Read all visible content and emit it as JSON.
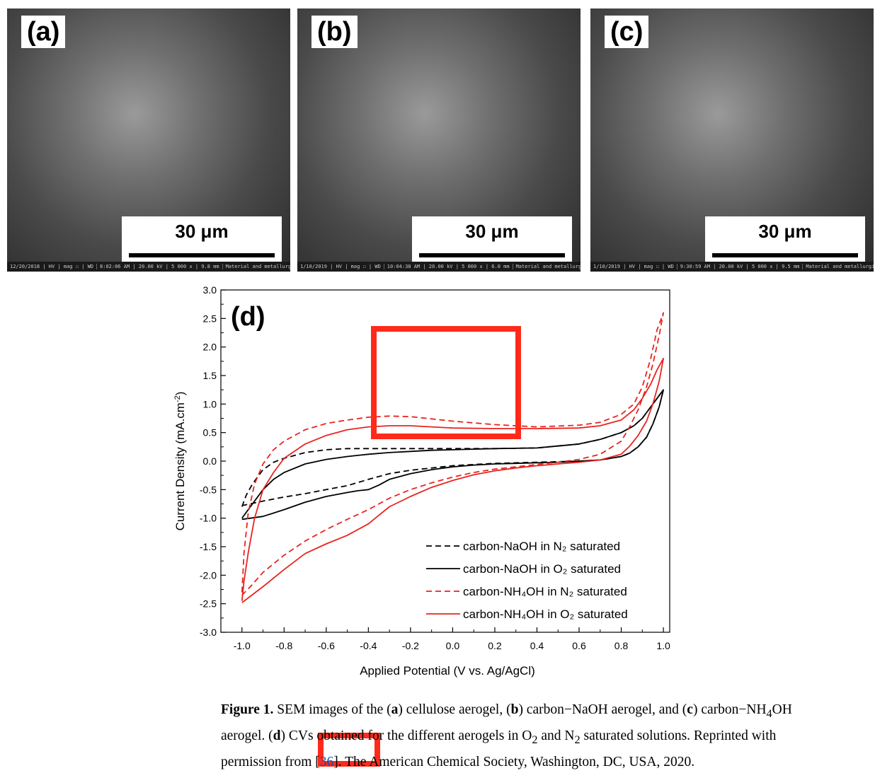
{
  "panels": [
    {
      "label": "(a)",
      "scale": "30 μm",
      "databar": [
        "12/20/2018 | HV | mag ☐ | WD",
        "8:02:06 AM | 20.00 kV | 5 000 x | 9.8 mm",
        "Material and metallurgical Eng Dept ITS"
      ]
    },
    {
      "label": "(b)",
      "scale": "30 μm",
      "databar": [
        "1/10/2019 | HV | mag ☐ | WD",
        "10:04:38 AM | 20.00 kV | 5 000 x | 6.0 mm",
        "Material and metallurgical Eng Dept ITS"
      ]
    },
    {
      "label": "(c)",
      "scale": "30 μm",
      "databar": [
        "1/10/2019 | HV | mag ☐ | WD",
        "9:30:59 AM | 20.00 kV | 5 000 x | 9.5 mm",
        "Material and metallurgical Eng Dept ITS"
      ]
    }
  ],
  "chart_data": {
    "type": "line",
    "panel_label": "(d)",
    "xlabel": "Applied Potential (V vs. Ag/AgCl)",
    "ylabel": "Current Density (mA.cm",
    "ylabel_sup": "-2",
    "ylabel_close": ")",
    "xlim": [
      -1.1,
      1.03
    ],
    "ylim": [
      -3.0,
      3.0
    ],
    "xticks": [
      "-1.0",
      "-0.8",
      "-0.6",
      "-0.4",
      "-0.2",
      "0.0",
      "0.2",
      "0.4",
      "0.6",
      "0.8",
      "1.0"
    ],
    "yticks": [
      "3.0",
      "2.5",
      "2.0",
      "1.5",
      "1.0",
      "0.5",
      "0.0",
      "-0.5",
      "-1.0",
      "-1.5",
      "-2.0",
      "-2.5",
      "-3.0"
    ],
    "series": [
      {
        "name": "carbon-NaOH in N₂ saturated",
        "color": "#000000",
        "dash": true,
        "x": [
          -1.0,
          -0.98,
          -0.95,
          -0.9,
          -0.85,
          -0.8,
          -0.7,
          -0.6,
          -0.5,
          -0.4,
          -0.3,
          -0.2,
          -0.1,
          0.0,
          0.2,
          0.4,
          0.6,
          0.7,
          0.8,
          0.86,
          0.9,
          0.94,
          0.97,
          1.0,
          0.98,
          0.95,
          0.92,
          0.88,
          0.84,
          0.8,
          0.7,
          0.6,
          0.5,
          0.4,
          0.3,
          0.2,
          0.1,
          0.0,
          -0.1,
          -0.2,
          -0.3,
          -0.4,
          -0.5,
          -0.6,
          -0.7,
          -0.8,
          -0.9,
          -0.96,
          -1.0
        ],
        "y": [
          -0.8,
          -0.6,
          -0.4,
          -0.15,
          -0.02,
          0.05,
          0.15,
          0.2,
          0.22,
          0.22,
          0.22,
          0.22,
          0.22,
          0.22,
          0.22,
          0.23,
          0.3,
          0.38,
          0.5,
          0.62,
          0.75,
          0.95,
          1.1,
          1.25,
          0.95,
          0.65,
          0.42,
          0.25,
          0.14,
          0.08,
          0.02,
          0.0,
          -0.01,
          -0.02,
          -0.03,
          -0.04,
          -0.06,
          -0.08,
          -0.12,
          -0.16,
          -0.22,
          -0.32,
          -0.43,
          -0.5,
          -0.57,
          -0.63,
          -0.7,
          -0.75,
          -0.78
        ]
      },
      {
        "name": "carbon-NaOH in O₂ saturated",
        "color": "#000000",
        "dash": false,
        "x": [
          -1.0,
          -0.96,
          -0.9,
          -0.85,
          -0.8,
          -0.7,
          -0.6,
          -0.5,
          -0.4,
          -0.3,
          -0.2,
          -0.1,
          0.0,
          0.2,
          0.4,
          0.6,
          0.7,
          0.8,
          0.86,
          0.9,
          0.94,
          0.97,
          1.0,
          0.98,
          0.95,
          0.92,
          0.88,
          0.84,
          0.8,
          0.7,
          0.6,
          0.5,
          0.4,
          0.3,
          0.2,
          0.1,
          0.0,
          -0.1,
          -0.2,
          -0.3,
          -0.35,
          -0.4,
          -0.45,
          -0.5,
          -0.6,
          -0.7,
          -0.8,
          -0.9,
          -0.96,
          -1.0
        ],
        "y": [
          -1.0,
          -0.8,
          -0.5,
          -0.32,
          -0.2,
          -0.05,
          0.03,
          0.08,
          0.12,
          0.15,
          0.17,
          0.19,
          0.2,
          0.22,
          0.23,
          0.3,
          0.38,
          0.5,
          0.62,
          0.75,
          0.95,
          1.1,
          1.25,
          0.95,
          0.65,
          0.42,
          0.25,
          0.14,
          0.08,
          0.02,
          0.0,
          -0.02,
          -0.03,
          -0.04,
          -0.05,
          -0.07,
          -0.1,
          -0.15,
          -0.22,
          -0.32,
          -0.42,
          -0.5,
          -0.52,
          -0.55,
          -0.62,
          -0.72,
          -0.85,
          -0.97,
          -1.0,
          -1.02
        ]
      },
      {
        "name": "carbon-NH₄OH in N₂ saturated",
        "color": "#e8241f",
        "dash": true,
        "x": [
          -1.0,
          -0.99,
          -0.97,
          -0.94,
          -0.9,
          -0.85,
          -0.8,
          -0.7,
          -0.6,
          -0.5,
          -0.4,
          -0.3,
          -0.2,
          -0.1,
          0.0,
          0.2,
          0.4,
          0.6,
          0.7,
          0.8,
          0.86,
          0.9,
          0.94,
          0.97,
          1.0,
          0.98,
          0.95,
          0.92,
          0.88,
          0.84,
          0.8,
          0.7,
          0.6,
          0.5,
          0.4,
          0.3,
          0.2,
          0.1,
          0.0,
          -0.1,
          -0.2,
          -0.3,
          -0.4,
          -0.5,
          -0.6,
          -0.7,
          -0.8,
          -0.9,
          -0.96,
          -1.0
        ],
        "y": [
          -2.3,
          -1.6,
          -0.9,
          -0.4,
          -0.05,
          0.2,
          0.35,
          0.55,
          0.66,
          0.72,
          0.77,
          0.79,
          0.78,
          0.74,
          0.7,
          0.64,
          0.6,
          0.63,
          0.68,
          0.82,
          1.0,
          1.3,
          1.8,
          2.3,
          2.6,
          2.2,
          1.7,
          1.3,
          0.9,
          0.6,
          0.35,
          0.12,
          0.03,
          -0.02,
          -0.06,
          -0.1,
          -0.14,
          -0.2,
          -0.28,
          -0.38,
          -0.5,
          -0.65,
          -0.85,
          -1.02,
          -1.2,
          -1.4,
          -1.65,
          -1.95,
          -2.2,
          -2.35
        ]
      },
      {
        "name": "carbon-NH₄OH in O₂ saturated",
        "color": "#e8241f",
        "dash": false,
        "x": [
          -1.0,
          -0.99,
          -0.97,
          -0.94,
          -0.9,
          -0.85,
          -0.8,
          -0.7,
          -0.6,
          -0.5,
          -0.4,
          -0.3,
          -0.2,
          -0.1,
          0.0,
          0.2,
          0.4,
          0.6,
          0.7,
          0.8,
          0.86,
          0.9,
          0.94,
          0.97,
          1.0,
          0.98,
          0.95,
          0.92,
          0.88,
          0.84,
          0.8,
          0.7,
          0.6,
          0.5,
          0.4,
          0.3,
          0.2,
          0.1,
          0.0,
          -0.1,
          -0.2,
          -0.3,
          -0.35,
          -0.4,
          -0.5,
          -0.6,
          -0.7,
          -0.8,
          -0.9,
          -1.0
        ],
        "y": [
          -2.45,
          -2.1,
          -1.6,
          -1.0,
          -0.5,
          -0.2,
          0.05,
          0.3,
          0.45,
          0.55,
          0.6,
          0.62,
          0.62,
          0.6,
          0.58,
          0.57,
          0.57,
          0.58,
          0.62,
          0.72,
          0.9,
          1.1,
          1.35,
          1.6,
          1.8,
          1.4,
          1.0,
          0.7,
          0.45,
          0.26,
          0.12,
          0.02,
          -0.02,
          -0.05,
          -0.08,
          -0.12,
          -0.17,
          -0.24,
          -0.34,
          -0.46,
          -0.62,
          -0.8,
          -0.95,
          -1.1,
          -1.3,
          -1.45,
          -1.62,
          -1.9,
          -2.2,
          -2.48
        ]
      }
    ]
  },
  "caption": {
    "fig_label": "Figure 1.",
    "line1_t1": " SEM images of the (",
    "line1_a": "a",
    "line1_t2": ") cellulose aerogel, (",
    "line1_b": "b",
    "line1_t3": ") carbon−NaOH aerogel, and (",
    "line1_c": "c",
    "line1_t4": ") carbon−NH",
    "line1_sub4": "4",
    "line1_t5": "OH",
    "line2_t1": "aerogel. (",
    "line2_d": "d",
    "line2_t2": ") CVs obtained for the different aerogels in O",
    "line2_sub2a": "2",
    "line2_t3": " and N",
    "line2_sub2b": "2",
    "line2_t4": " saturated solutions. Reprinted with",
    "line3_t1": "permission from [",
    "line3_cite": "36",
    "line3_t2": "]. The American Chemical Society, Washington, DC, USA, 2020."
  }
}
